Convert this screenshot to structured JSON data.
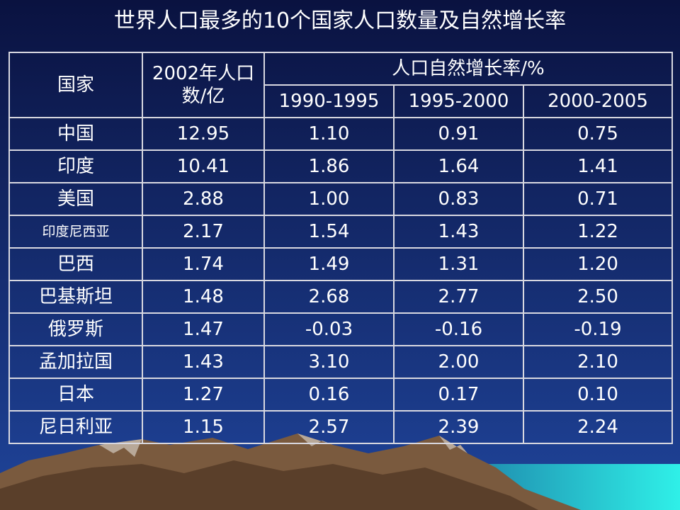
{
  "title": "世界人口最多的10个国家人口数量及自然增长率",
  "table": {
    "header": {
      "country": "国家",
      "population": "2002年人口数/亿",
      "rate": "人口自然增长率/%",
      "periods": [
        "1990-1995",
        "1995-2000",
        "2000-2005"
      ]
    },
    "rows": [
      [
        "中国",
        "12.95",
        "1.10",
        "0.91",
        "0.75"
      ],
      [
        "印度",
        "10.41",
        "1.86",
        "1.64",
        "1.41"
      ],
      [
        "美国",
        "2.88",
        "1.00",
        "0.83",
        "0.71"
      ],
      [
        "印度尼西亚",
        "2.17",
        "1.54",
        "1.43",
        "1.22"
      ],
      [
        "巴西",
        "1.74",
        "1.49",
        "1.31",
        "1.20"
      ],
      [
        "巴基斯坦",
        "1.48",
        "2.68",
        "2.77",
        "2.50"
      ],
      [
        "俄罗斯",
        "1.47",
        "-0.03",
        "-0.16",
        "-0.19"
      ],
      [
        "孟加拉国",
        "1.43",
        "3.10",
        "2.00",
        "2.10"
      ],
      [
        "日本",
        "1.27",
        "0.16",
        "0.17",
        "0.10"
      ],
      [
        "尼日利亚",
        "1.15",
        "2.57",
        "2.39",
        "2.24"
      ]
    ]
  }
}
